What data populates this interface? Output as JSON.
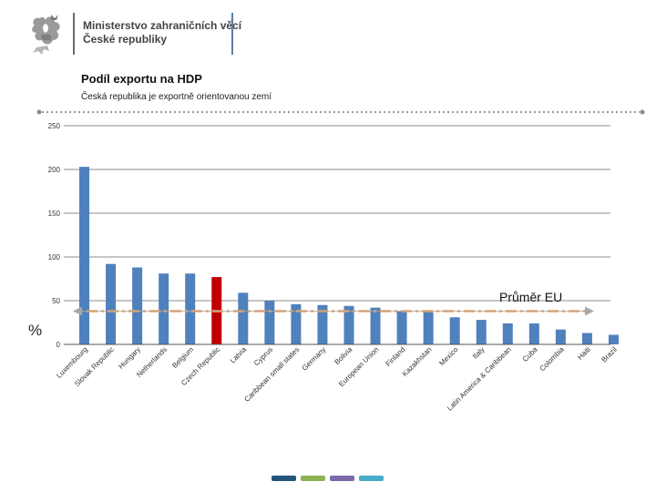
{
  "header": {
    "ministry_line1": "Ministerstvo zahraničních věcí",
    "ministry_line2": "České republiky"
  },
  "slide": {
    "title": "Podíl exportu na HDP",
    "subtitle": "Česká republika je exportně orientovanou zemí",
    "unit_label": "%",
    "eu_average_label": "Průměr EU"
  },
  "colors": {
    "bar": "#4f81bd",
    "highlight": "#c00000",
    "eu_line": "#f0a25a",
    "arrow": "#a8a8a8",
    "swatches": [
      "#23547a",
      "#8fb455",
      "#7a6aa8",
      "#4aabc8"
    ]
  },
  "chart_data": {
    "type": "bar",
    "title": "Podíl exportu na HDP",
    "xlabel": "",
    "ylabel": "%",
    "ylim": [
      0,
      250
    ],
    "yticks": [
      0,
      50,
      100,
      150,
      200,
      250
    ],
    "grid": true,
    "categories": [
      "Luxembourg",
      "Slovak Republic",
      "Hungary",
      "Netherlands",
      "Belgium",
      "Czech Republic",
      "Latvia",
      "Cyprus",
      "Caribbean small states",
      "Germany",
      "Bolivia",
      "European Union",
      "Finland",
      "Kazakhstan",
      "Mexico",
      "Italy",
      "Latin America & Caribbean",
      "Cuba",
      "Colombia",
      "Haiti",
      "Brazil"
    ],
    "values": [
      203,
      92,
      88,
      81,
      81,
      77,
      59,
      50,
      46,
      45,
      44,
      42,
      38,
      37,
      31,
      28,
      24,
      24,
      17,
      13,
      11
    ],
    "highlight": "Czech Republic",
    "reference_line": {
      "label": "Průměr EU",
      "value": 38
    }
  }
}
